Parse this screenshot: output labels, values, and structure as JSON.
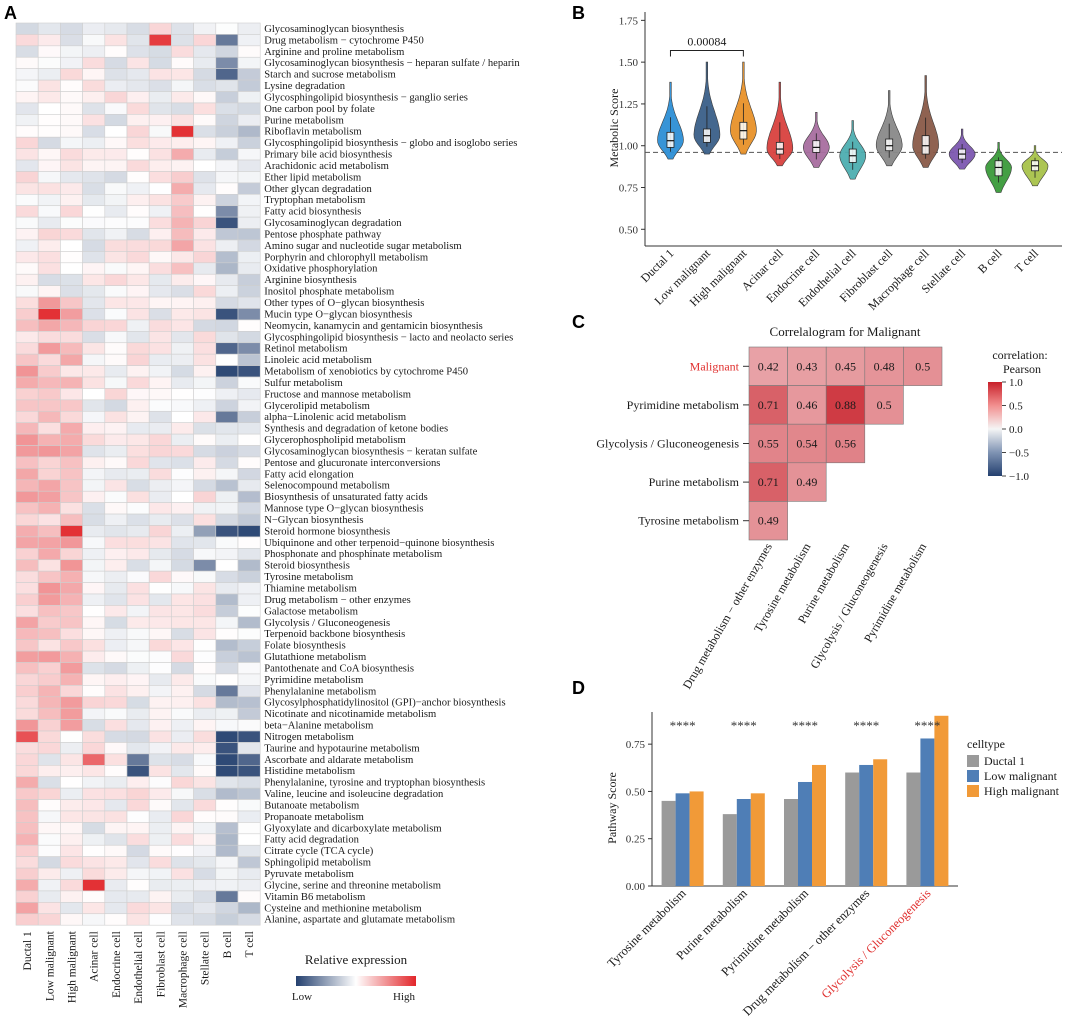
{
  "panels": {
    "A": {
      "letter": "A",
      "rows": [
        "Glycosaminoglycan biosynthesis",
        "Drug metabolism − cytochrome P450",
        "Arginine and proline metabolism",
        "Glycosaminoglycan biosynthesis − heparan sulfate / heparin",
        "Starch and sucrose metabolism",
        "Lysine degradation",
        "Glycosphingolipid biosynthesis − ganglio series",
        "One carbon pool by folate",
        "Purine metabolism",
        "Riboflavin metabolism",
        "Glycosphingolipid biosynthesis − globo and isoglobo series",
        "Primary bile acid biosynthesis",
        "Arachidonic acid metabolism",
        "Ether lipid metabolism",
        "Other glycan degradation",
        "Tryptophan metabolism",
        "Fatty acid biosynthesis",
        "Glycosaminoglycan degradation",
        "Pentose phosphate pathway",
        "Amino sugar and nucleotide sugar metabolism",
        "Porphyrin and chlorophyll metabolism",
        "Oxidative phosphorylation",
        "Arginine biosynthesis",
        "Inositol phosphate metabolism",
        "Other types of O−glycan biosynthesis",
        "Mucin type O−glycan biosynthesis",
        "Neomycin, kanamycin and gentamicin biosynthesis",
        "Glycosphingolipid biosynthesis − lacto and neolacto series",
        "Retinol metabolism",
        "Linoleic acid metabolism",
        "Metabolism of xenobiotics by cytochrome P450",
        "Sulfur metabolism",
        "Fructose and mannose metabolism",
        "Glycerolipid metabolism",
        "alpha−Linolenic acid metabolism",
        "Synthesis and degradation of ketone bodies",
        "Glycerophospholipid metabolism",
        "Glycosaminoglycan biosynthesis − keratan sulfate",
        "Pentose and glucuronate interconversions",
        "Fatty acid elongation",
        "Selenocompound metabolism",
        "Biosynthesis of unsaturated fatty acids",
        "Mannose type O−glycan biosynthesis",
        "N−Glycan biosynthesis",
        "Steroid hormone biosynthesis",
        "Ubiquinone and other terpenoid−quinone biosynthesis",
        "Phosphonate and phosphinate metabolism",
        "Steroid biosynthesis",
        "Tyrosine metabolism",
        "Thiamine metabolism",
        "Drug metabolism − other enzymes",
        "Galactose metabolism",
        "Glycolysis / Gluconeogenesis",
        "Terpenoid backbone biosynthesis",
        "Folate biosynthesis",
        "Glutathione metabolism",
        "Pantothenate and CoA biosynthesis",
        "Pyrimidine metabolism",
        "Phenylalanine metabolism",
        "Glycosylphosphatidylinositol (GPI)−anchor biosynthesis",
        "Nicotinate and nicotinamide metabolism",
        "beta−Alanine metabolism",
        "Nitrogen metabolism",
        "Taurine and hypotaurine metabolism",
        "Ascorbate and aldarate metabolism",
        "Histidine metabolism",
        "Phenylalanine, tyrosine and tryptophan biosynthesis",
        "Valine, leucine and isoleucine degradation",
        "Butanoate metabolism",
        "Propanoate metabolism",
        "Glyoxylate and dicarboxylate metabolism",
        "Fatty acid degradation",
        "Citrate cycle (TCA cycle)",
        "Sphingolipid metabolism",
        "Pyruvate metabolism",
        "Glycine, serine and threonine metabolism",
        "Vitamin B6 metabolism",
        "Cysteine and methionine metabolism",
        "Alanine, aspartate and glutamate metabolism"
      ],
      "columns": [
        "Ductal 1",
        "Low malignant",
        "High malignant",
        "Acinar cell",
        "Endocrine cell",
        "Endothelial cell",
        "Fibroblast cell",
        "Macrophage cell",
        "Stellate cell",
        "B cell",
        "T cell"
      ],
      "hot": [
        [
          1,
          6,
          0.9
        ],
        [
          9,
          7,
          0.95
        ],
        [
          25,
          1,
          1.0
        ],
        [
          44,
          2,
          1.0
        ],
        [
          75,
          3,
          0.95
        ],
        [
          62,
          0,
          0.8
        ],
        [
          64,
          3,
          0.7
        ]
      ],
      "cold": [
        [
          1,
          9,
          0.7
        ],
        [
          3,
          9,
          0.6
        ],
        [
          4,
          9,
          0.8
        ],
        [
          16,
          9,
          0.6
        ],
        [
          17,
          9,
          0.9
        ],
        [
          25,
          9,
          0.9
        ],
        [
          25,
          10,
          0.6
        ],
        [
          28,
          9,
          0.8
        ],
        [
          28,
          10,
          0.6
        ],
        [
          30,
          9,
          1.0
        ],
        [
          30,
          10,
          0.9
        ],
        [
          44,
          9,
          0.9
        ],
        [
          44,
          10,
          1.0
        ],
        [
          44,
          8,
          0.5
        ],
        [
          47,
          8,
          0.6
        ],
        [
          62,
          9,
          1.0
        ],
        [
          62,
          10,
          0.9
        ],
        [
          63,
          9,
          0.9
        ],
        [
          64,
          9,
          0.95
        ],
        [
          64,
          10,
          0.8
        ],
        [
          65,
          5,
          0.9
        ],
        [
          65,
          9,
          1.0
        ],
        [
          65,
          10,
          0.9
        ],
        [
          64,
          5,
          0.7
        ],
        [
          76,
          9,
          0.7
        ],
        [
          58,
          9,
          0.7
        ],
        [
          34,
          9,
          0.7
        ]
      ],
      "legend_title": "Relative expression",
      "legend_low": "Low",
      "legend_high": "High"
    },
    "B": {
      "letter": "B",
      "ylabel": "Metabolic Score",
      "yticks": [
        "0.50",
        "0.75",
        "1.00",
        "1.25",
        "1.50",
        "1.75"
      ],
      "annotation": "0.00084"
    },
    "C": {
      "letter": "C",
      "title": "Correlalogram for Malignant",
      "row_labels": [
        "Malignant",
        "Pyrimidine metabolism",
        "Glycolysis / Gluconeogenesis",
        "Purine metabolism",
        "Tyrosine metabolism"
      ],
      "col_labels": [
        "Drug metabolism − other enzymes",
        "Tyrosine metabolism",
        "Purine metabolism",
        "Glycolysis / Gluconeogenesis",
        "Pyrimidine metabolism"
      ],
      "legend_title_1": "correlation:",
      "legend_title_2": "Pearson",
      "legend_ticks": [
        "1.0",
        "0.5",
        "0.0",
        "−0.5",
        "−1.0"
      ]
    },
    "D": {
      "letter": "D",
      "ylabel": "Pathway Score",
      "yticks": [
        "0.00",
        "0.25",
        "0.50",
        "0.75"
      ],
      "signif": "****",
      "legend_title": "celltype"
    }
  },
  "chart_data": [
    {
      "type": "heatmap",
      "panel": "A",
      "title": "",
      "value_scale": "relative expression (-1 low to +1 high)",
      "note": "row and column labels are in panels.A"
    },
    {
      "type": "violin",
      "panel": "B",
      "ylabel": "Metabolic Score",
      "ylim": [
        0.4,
        1.8
      ],
      "reference_line": 0.96,
      "categories": [
        "Ductal 1",
        "Low malignant",
        "High malignant",
        "Acinar cell",
        "Endocrine cell",
        "Endothelial cell",
        "Fibroblast cell",
        "Macrophage cell",
        "Stellate cell",
        "B cell",
        "T cell"
      ],
      "colors": [
        "#2d8fd5",
        "#3a5f88",
        "#e8922a",
        "#d9423f",
        "#a86ea0",
        "#4eaeb0",
        "#8a8a8a",
        "#8a5a48",
        "#7d58b0",
        "#3a9a3a",
        "#a8c24a"
      ],
      "medians": [
        1.03,
        1.06,
        1.09,
        0.98,
        0.99,
        0.94,
        1.0,
        1.0,
        0.95,
        0.87,
        0.88
      ],
      "q1": [
        0.99,
        1.02,
        1.04,
        0.95,
        0.96,
        0.9,
        0.97,
        0.95,
        0.92,
        0.82,
        0.85
      ],
      "q3": [
        1.08,
        1.1,
        1.14,
        1.02,
        1.03,
        0.98,
        1.04,
        1.06,
        0.98,
        0.91,
        0.91
      ],
      "min": [
        0.92,
        0.95,
        0.95,
        0.88,
        0.87,
        0.8,
        0.88,
        0.87,
        0.86,
        0.72,
        0.76
      ],
      "max": [
        1.38,
        1.5,
        1.5,
        1.38,
        1.2,
        1.15,
        1.33,
        1.42,
        1.1,
        1.02,
        1.0
      ],
      "comparison": {
        "from": "Ductal 1",
        "to": "High malignant",
        "label": "0.00084"
      }
    },
    {
      "type": "correlogram",
      "panel": "C",
      "title": "Correlalogram for Malignant",
      "cells": [
        {
          "row": "Malignant",
          "col": "Drug metabolism − other enzymes",
          "value": 0.42
        },
        {
          "row": "Malignant",
          "col": "Tyrosine metabolism",
          "value": 0.43
        },
        {
          "row": "Malignant",
          "col": "Purine metabolism",
          "value": 0.45
        },
        {
          "row": "Malignant",
          "col": "Glycolysis / Gluconeogenesis",
          "value": 0.48
        },
        {
          "row": "Malignant",
          "col": "Pyrimidine metabolism",
          "value": 0.5
        },
        {
          "row": "Pyrimidine metabolism",
          "col": "Drug metabolism − other enzymes",
          "value": 0.71
        },
        {
          "row": "Pyrimidine metabolism",
          "col": "Tyrosine metabolism",
          "value": 0.46
        },
        {
          "row": "Pyrimidine metabolism",
          "col": "Purine metabolism",
          "value": 0.88
        },
        {
          "row": "Pyrimidine metabolism",
          "col": "Glycolysis / Gluconeogenesis",
          "value": 0.5
        },
        {
          "row": "Glycolysis / Gluconeogenesis",
          "col": "Drug metabolism − other enzymes",
          "value": 0.55
        },
        {
          "row": "Glycolysis / Gluconeogenesis",
          "col": "Tyrosine metabolism",
          "value": 0.54
        },
        {
          "row": "Glycolysis / Gluconeogenesis",
          "col": "Purine metabolism",
          "value": 0.56
        },
        {
          "row": "Purine metabolism",
          "col": "Drug metabolism − other enzymes",
          "value": 0.71
        },
        {
          "row": "Purine metabolism",
          "col": "Tyrosine metabolism",
          "value": 0.49
        },
        {
          "row": "Tyrosine metabolism",
          "col": "Drug metabolism − other enzymes",
          "value": 0.49
        }
      ],
      "scale": [
        -1,
        1
      ]
    },
    {
      "type": "bar",
      "panel": "D",
      "ylabel": "Pathway Score",
      "ylim": [
        0,
        0.92
      ],
      "categories": [
        "Tyrosine metabolism",
        "Purine metabolism",
        "Pyrimidine metabolism",
        "Drug metabolism − other enzymes",
        "Glycolysis / Gluconeogenesis"
      ],
      "highlight_category": "Glycolysis / Gluconeogenesis",
      "series": [
        {
          "name": "Ductal 1",
          "color": "#9a9a9a",
          "values": [
            0.45,
            0.38,
            0.46,
            0.6,
            0.6
          ]
        },
        {
          "name": "Low malignant",
          "color": "#4f7eb6",
          "values": [
            0.49,
            0.46,
            0.55,
            0.64,
            0.78
          ]
        },
        {
          "name": "High malignant",
          "color": "#f19a38",
          "values": [
            0.5,
            0.49,
            0.64,
            0.67,
            0.9
          ]
        }
      ],
      "annotations": [
        "****",
        "****",
        "****",
        "****",
        "****"
      ]
    }
  ]
}
